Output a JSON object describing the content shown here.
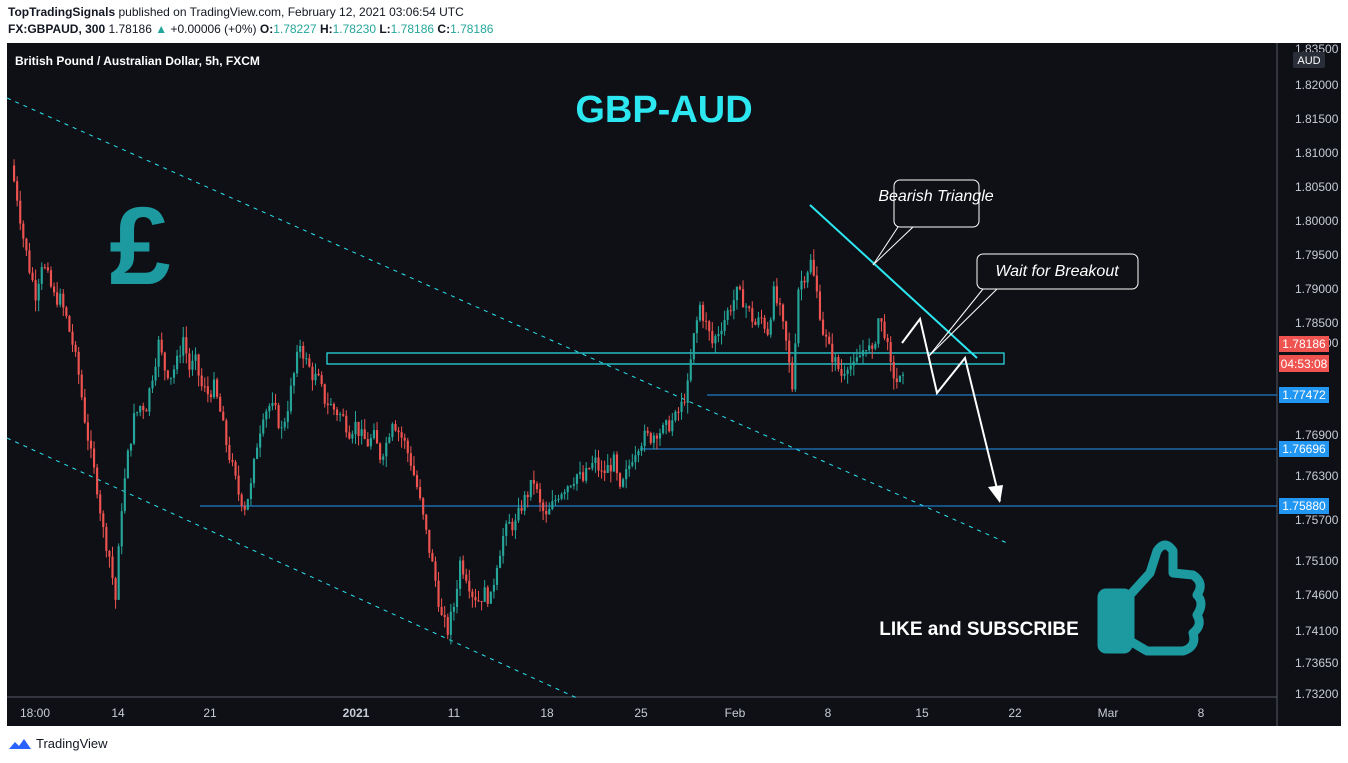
{
  "header": {
    "author": "TopTradingSignals",
    "published_text": "published on TradingView.com, February 12, 2021 03:06:54 UTC",
    "symbol": "FX:GBPAUD, 300",
    "last": "1.78186",
    "change": "+0.00006 (+0%)",
    "o_label": "O:",
    "o_value": "1.78227",
    "h_label": "H:",
    "h_value": "1.78230",
    "l_label": "L:",
    "l_value": "1.78186",
    "c_label": "C:",
    "c_value": "1.78186"
  },
  "footer": {
    "brand": "TradingView"
  },
  "colors": {
    "background": "#0e1016",
    "up": "#26a69a",
    "down": "#ef5350",
    "accent": "#2ce6f0",
    "level": "#2196f3",
    "teal_art": "#1c9aa0"
  },
  "chart_data": {
    "type": "candlestick",
    "instrument": "British Pound / Australian Dollar, 5h, FXCM",
    "currency_badge": "AUD",
    "title": "GBP-AUD",
    "x_ticks": [
      "18:00",
      "14",
      "21",
      "2021",
      "11",
      "18",
      "25",
      "Feb",
      "8",
      "15",
      "22",
      "Mar",
      "8"
    ],
    "y_ticks": [
      "1.83500",
      "1.82000",
      "1.81500",
      "1.81000",
      "1.80500",
      "1.80000",
      "1.79500",
      "1.79000",
      "1.78500",
      "1.77800",
      "1.76900",
      "1.76300",
      "1.75700",
      "1.75100",
      "1.74600",
      "1.74100",
      "1.73650",
      "1.73200"
    ],
    "ylim": [
      1.732,
      1.835
    ],
    "last_price": {
      "value": "1.78186",
      "countdown": "04:53:08"
    },
    "levels": [
      "1.77472",
      "1.76696",
      "1.75880"
    ],
    "annotations": {
      "bearish_triangle": "Bearish Triangle",
      "wait_breakout": "Wait for Breakout",
      "cta": "LIKE and SUBSCRIBE",
      "pound_symbol": "£"
    },
    "price_path": [
      1.8165,
      1.8115,
      1.805,
      1.8,
      1.796,
      1.801,
      1.7985,
      1.7955,
      1.795,
      1.792,
      1.788,
      1.783,
      1.776,
      1.77,
      1.765,
      1.758,
      1.754,
      1.747,
      1.762,
      1.77,
      1.776,
      1.778,
      1.778,
      1.783,
      1.788,
      1.784,
      1.783,
      1.785,
      1.789,
      1.784,
      1.785,
      1.781,
      1.78,
      1.781,
      1.777,
      1.772,
      1.768,
      1.764,
      1.762,
      1.765,
      1.772,
      1.777,
      1.778,
      1.777,
      1.774,
      1.778,
      1.783,
      1.788,
      1.785,
      1.783,
      1.782,
      1.779,
      1.778,
      1.777,
      1.776,
      1.774,
      1.775,
      1.773,
      1.772,
      1.773,
      1.77,
      1.772,
      1.776,
      1.774,
      1.772,
      1.769,
      1.765,
      1.76,
      1.755,
      1.75,
      1.744,
      1.742,
      1.746,
      1.753,
      1.751,
      1.748,
      1.747,
      1.748,
      1.747,
      1.753,
      1.757,
      1.759,
      1.759,
      1.762,
      1.764,
      1.766,
      1.762,
      1.76,
      1.762,
      1.764,
      1.765,
      1.766,
      1.767,
      1.766,
      1.768,
      1.769,
      1.767,
      1.768,
      1.769,
      1.764,
      1.767,
      1.77,
      1.772,
      1.773,
      1.773,
      1.774,
      1.774,
      1.775,
      1.776,
      1.778,
      1.781,
      1.789,
      1.794,
      1.791,
      1.788,
      1.79,
      1.792,
      1.794,
      1.796,
      1.795,
      1.793,
      1.791,
      1.792,
      1.79,
      1.796,
      1.793,
      1.788,
      1.781,
      1.797,
      1.799,
      1.801,
      1.796,
      1.79,
      1.787,
      1.785,
      1.783,
      1.785,
      1.784,
      1.786,
      1.788,
      1.786,
      1.792,
      1.79,
      1.784,
      1.782,
      1.7819
    ]
  }
}
